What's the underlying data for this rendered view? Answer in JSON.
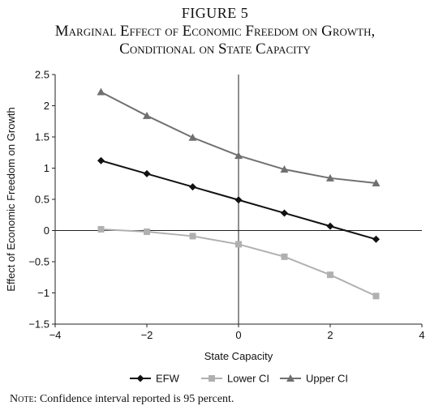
{
  "figure": {
    "number": "FIGURE 5",
    "title_line1": "Marginal Effect of Economic Freedom on Growth,",
    "title_line2": "Conditional on State Capacity"
  },
  "note": {
    "label": "Note:",
    "text": " Confidence interval reported is 95 percent."
  },
  "chart_data": {
    "type": "line",
    "xlabel": "State Capacity",
    "ylabel": "Effect of Economic Freedom on Growth",
    "xlim": [
      -4,
      4
    ],
    "ylim": [
      -1.5,
      2.5
    ],
    "x_ticks": [
      -4,
      -2,
      0,
      2,
      4
    ],
    "y_ticks": [
      2.5,
      2,
      1.5,
      1,
      0.5,
      0,
      -0.5,
      -1,
      -1.5
    ],
    "x_tick_labels": [
      "−4",
      "−2",
      "0",
      "2",
      "4"
    ],
    "y_tick_labels": [
      "2.5",
      "2",
      "1.5",
      "1",
      "0.5",
      "0",
      "−0.5",
      "−1",
      "−1.5"
    ],
    "grid": false,
    "legend_position": "bottom",
    "x": [
      -3,
      -2,
      -1,
      0,
      1,
      2,
      3
    ],
    "series": [
      {
        "name": "EFW",
        "marker": "diamond",
        "color": "#111111",
        "values": [
          1.12,
          0.91,
          0.7,
          0.49,
          0.28,
          0.07,
          -0.14
        ]
      },
      {
        "name": "Lower CI",
        "marker": "square",
        "color": "#b0b0b0",
        "values": [
          0.02,
          -0.02,
          -0.09,
          -0.22,
          -0.42,
          -0.71,
          -1.05
        ]
      },
      {
        "name": "Upper CI",
        "marker": "triangle",
        "color": "#707070",
        "values": [
          2.22,
          1.84,
          1.49,
          1.2,
          0.98,
          0.84,
          0.76
        ]
      }
    ]
  }
}
